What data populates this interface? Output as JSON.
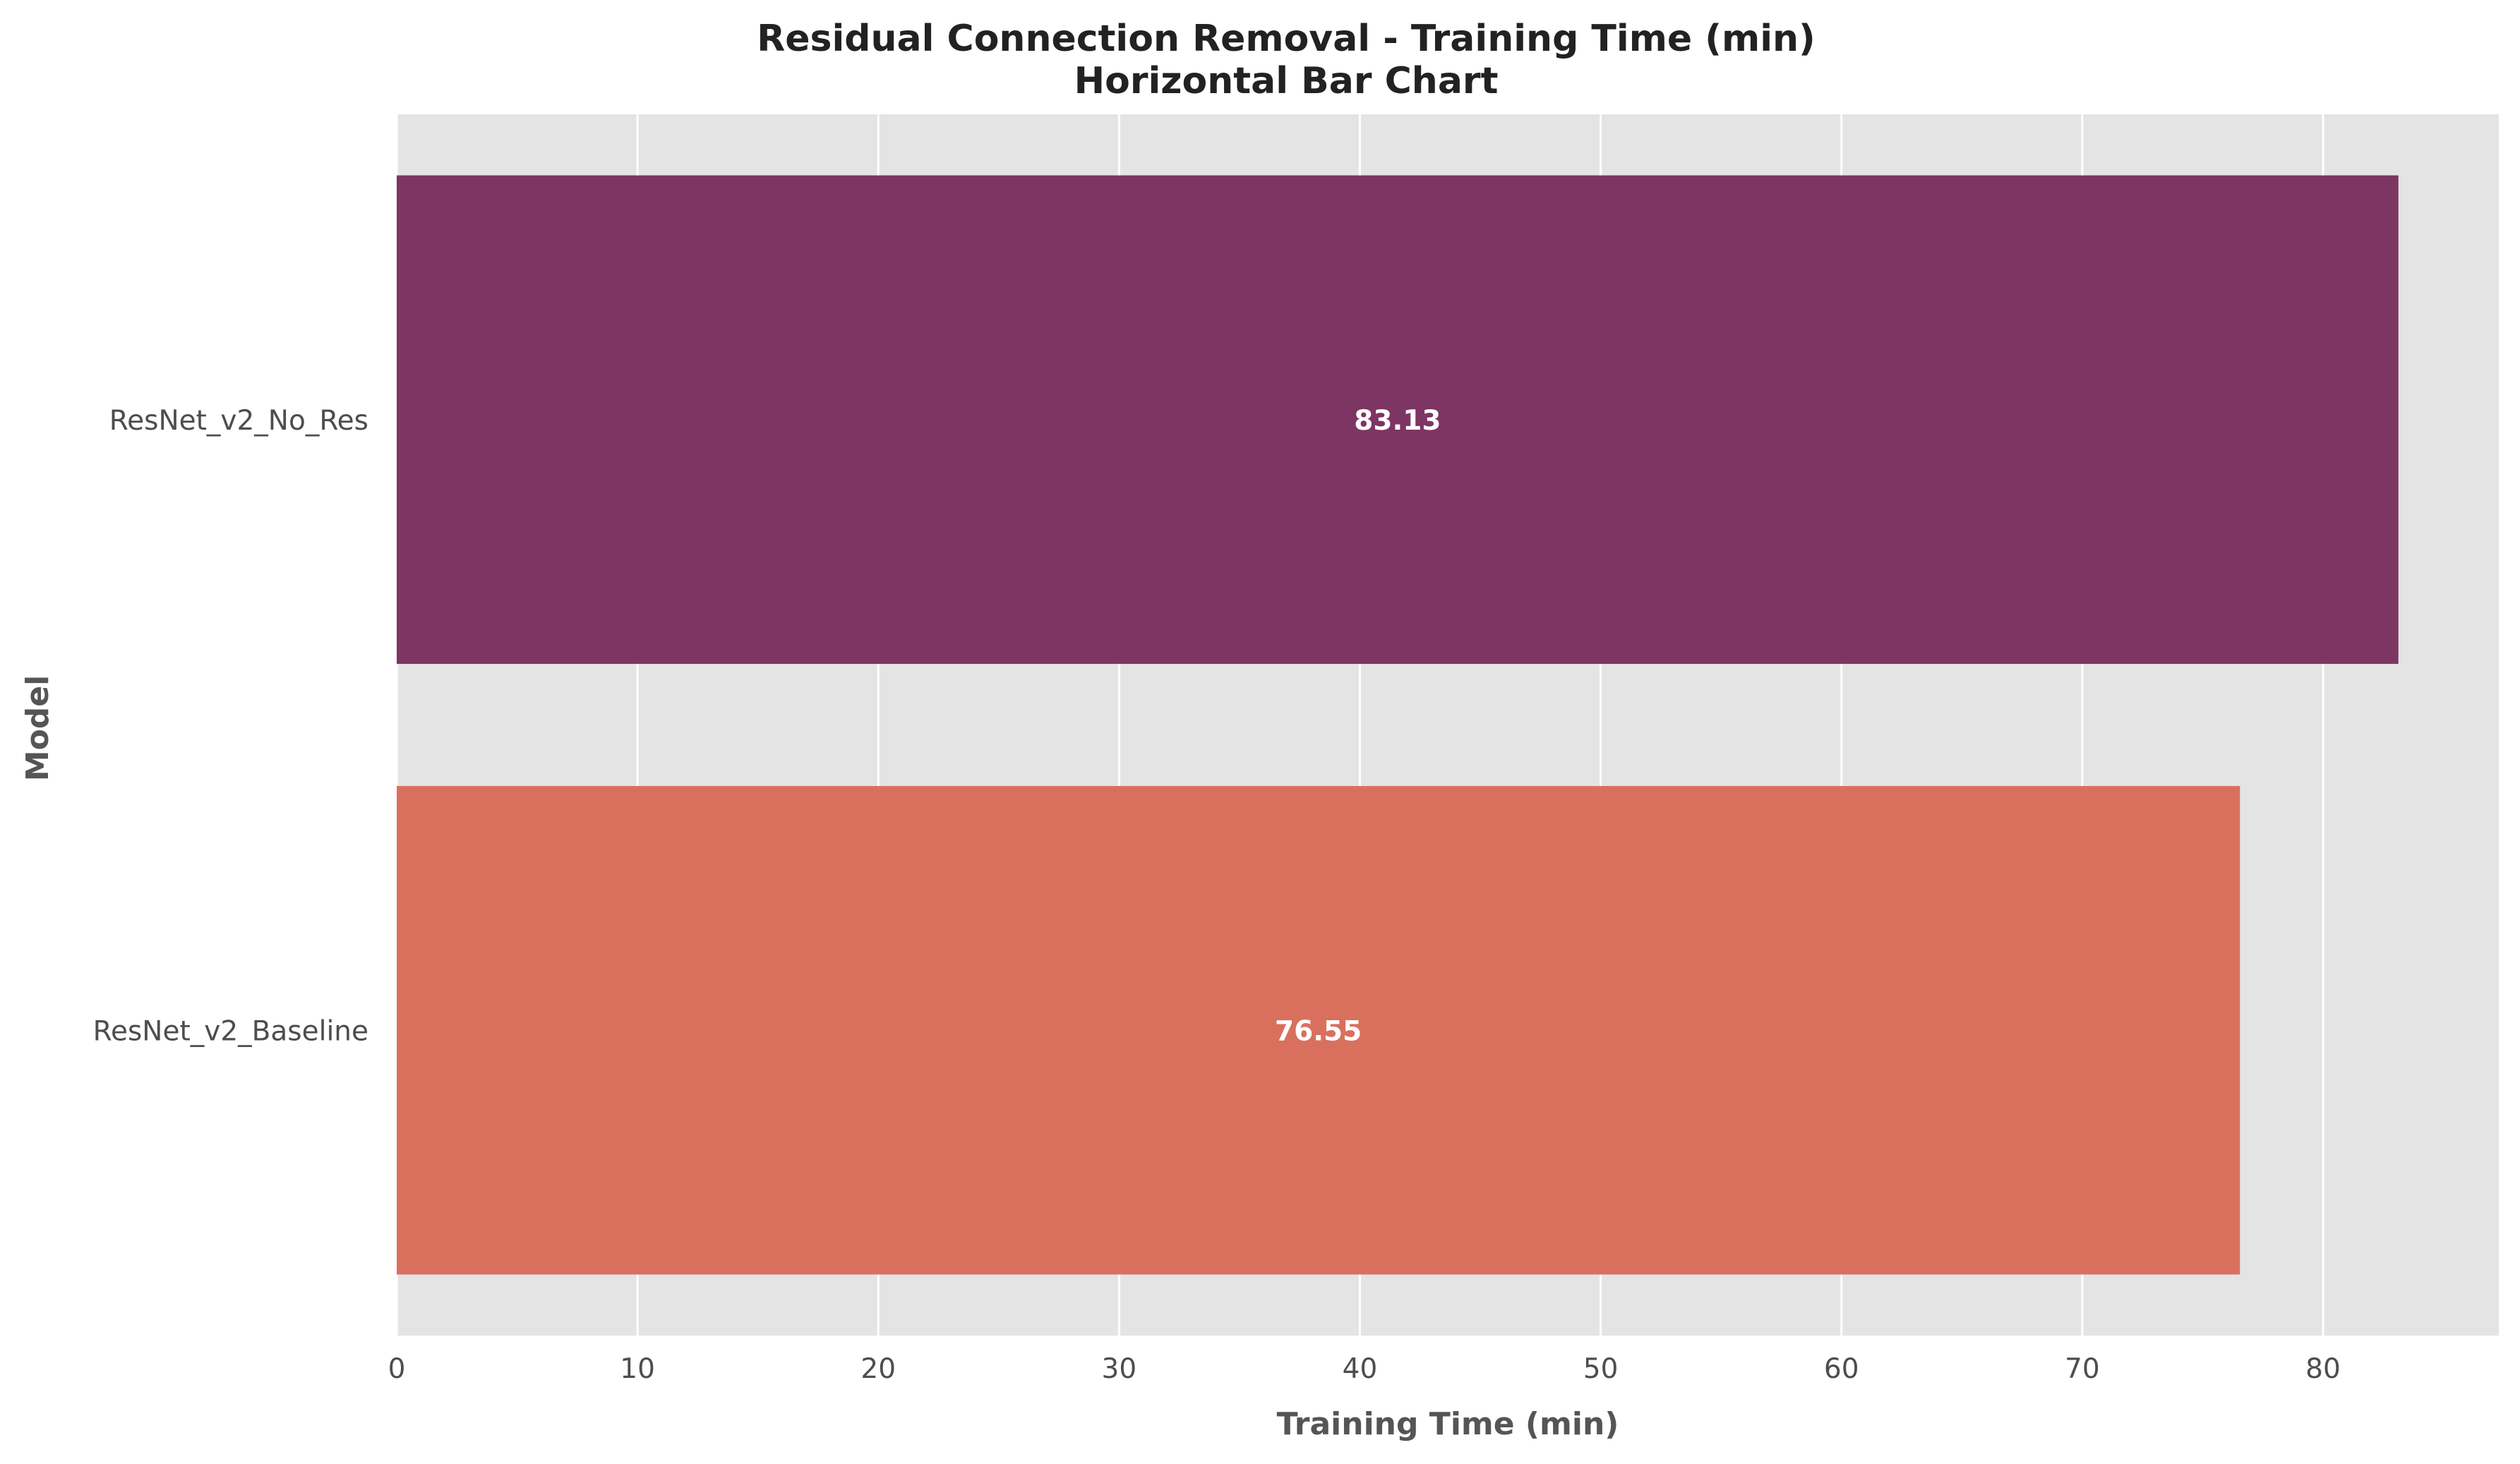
{
  "chart_data": {
    "type": "bar",
    "orientation": "horizontal",
    "title": "Residual Connection Removal - Training Time (min)",
    "subtitle": "Horizontal Bar Chart",
    "xlabel": "Training Time (min)",
    "ylabel": "Model",
    "categories": [
      "ResNet_v2_Baseline",
      "ResNet_v2_No_Res"
    ],
    "values": [
      76.55,
      83.13
    ],
    "value_labels": [
      "76.55",
      "83.13"
    ],
    "bar_colors": [
      "#d9705e",
      "#7d3563"
    ],
    "xlim": [
      0,
      87.3
    ],
    "xticks": [
      0,
      10,
      20,
      30,
      40,
      50,
      60,
      70,
      80
    ],
    "xtick_labels": [
      "0",
      "10",
      "20",
      "30",
      "40",
      "50",
      "60",
      "70",
      "80"
    ],
    "grid": true,
    "background_color": "#e4e4e4",
    "grid_color": "#ffffff"
  }
}
